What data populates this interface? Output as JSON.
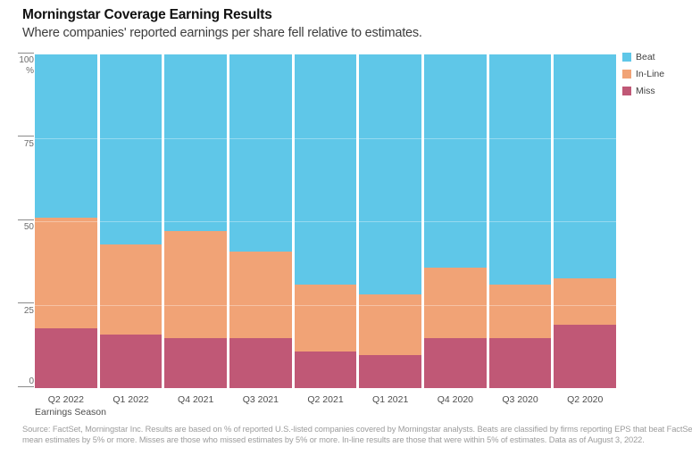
{
  "header": {
    "title": "Morningstar Coverage Earning Results",
    "subtitle": "Where companies' reported earnings per share fell relative to estimates."
  },
  "chart_data": {
    "type": "bar",
    "stacked": true,
    "orientation": "vertical",
    "title": "Morningstar Coverage Earning Results",
    "subtitle": "Where companies' reported earnings per share fell relative to estimates.",
    "xlabel": "Earnings Season",
    "ylabel": "%",
    "ylim": [
      0,
      100
    ],
    "yticks": [
      100,
      75,
      50,
      25,
      0
    ],
    "ytick_unit": "%",
    "gridlines": [
      75,
      50,
      25
    ],
    "legend_position": "top-right",
    "categories": [
      "Q2 2022",
      "Q1 2022",
      "Q4 2021",
      "Q3 2021",
      "Q2 2021",
      "Q1 2021",
      "Q4 2020",
      "Q3 2020",
      "Q2 2020"
    ],
    "series": [
      {
        "name": "Beat",
        "color": "#5FC7E8",
        "values": [
          49,
          57,
          53,
          59,
          69,
          72,
          64,
          69,
          67
        ]
      },
      {
        "name": "In-Line",
        "color": "#F1A376",
        "values": [
          33,
          27,
          32,
          26,
          20,
          18,
          21,
          16,
          14
        ]
      },
      {
        "name": "Miss",
        "color": "#C05876",
        "values": [
          18,
          16,
          15,
          15,
          11,
          10,
          15,
          15,
          19
        ]
      }
    ]
  },
  "footer": {
    "source_line1": "Source: FactSet, Morningstar Inc. Results are based on % of reported U.S.-listed companies covered by Morningstar analysts. Beats are classified by firms reporting EPS that beat FactSet",
    "source_line2": "mean estimates by 5% or more. Misses are those who missed estimates by 5% or more. In-line results are those that were within 5% of estimates. Data as of August 3, 2022."
  }
}
